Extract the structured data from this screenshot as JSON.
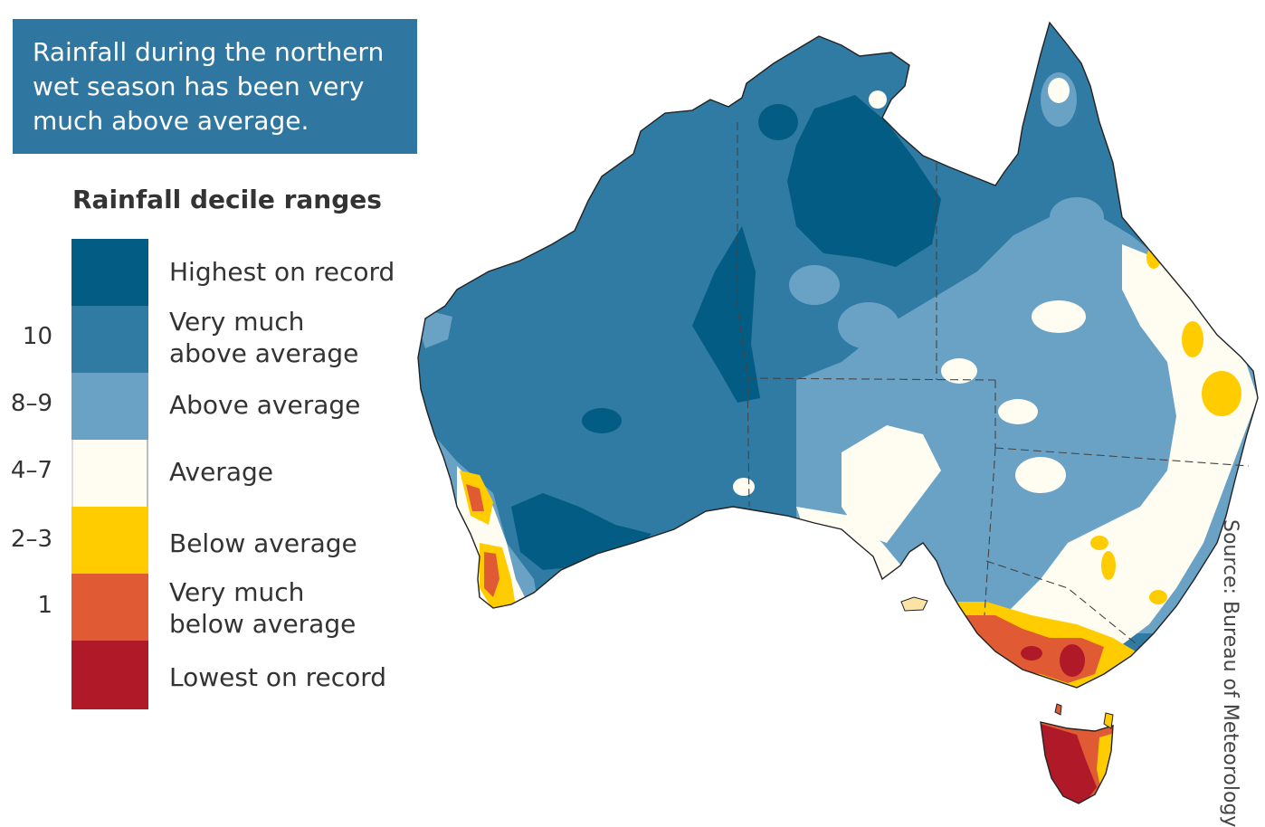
{
  "headline": {
    "text": "Rainfall during the northern\nwet season has been very\nmuch above average."
  },
  "legend": {
    "title": "Rainfall decile ranges",
    "items": [
      {
        "label": "Highest on record",
        "color": "#035c83",
        "decile": ""
      },
      {
        "label": "Very much\nabove average",
        "color": "#2f7ba3",
        "decile": "10"
      },
      {
        "label": "Above average",
        "color": "#6aa2c6",
        "decile": "8–9"
      },
      {
        "label": "Average",
        "color": "#fffcf2",
        "decile": "4–7"
      },
      {
        "label": "Below average",
        "color": "#ffcc00",
        "decile": "2–3"
      },
      {
        "label": "Very much\nbelow average",
        "color": "#e05a33",
        "decile": "1"
      },
      {
        "label": "Lowest on record",
        "color": "#b01a28",
        "decile": ""
      }
    ]
  },
  "map": {
    "region": "Australia",
    "state_border_style": "dashed"
  },
  "source": {
    "text": "Source: Bureau of Meteorology"
  }
}
